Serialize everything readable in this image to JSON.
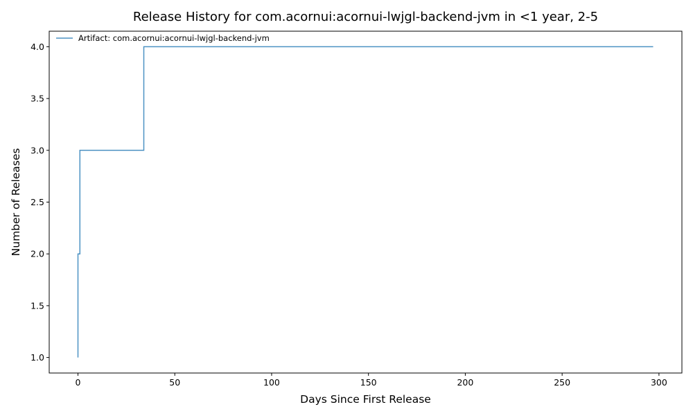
{
  "chart_data": {
    "type": "line",
    "drawstyle": "steps-post",
    "title": "Release History for com.acornui:acornui-lwjgl-backend-jvm in <1 year, 2-5",
    "xlabel": "Days Since First Release",
    "ylabel": "Number of Releases",
    "xlim": [
      -14.85,
      311.85
    ],
    "ylim": [
      0.85,
      4.15
    ],
    "xticks": [
      0,
      50,
      100,
      150,
      200,
      250,
      300
    ],
    "yticks": [
      1.0,
      1.5,
      2.0,
      2.5,
      3.0,
      3.5,
      4.0
    ],
    "xtick_labels": [
      "0",
      "50",
      "100",
      "150",
      "200",
      "250",
      "300"
    ],
    "ytick_labels": [
      "1.0",
      "1.5",
      "2.0",
      "2.5",
      "3.0",
      "3.5",
      "4.0"
    ],
    "grid": false,
    "legend": "top-left",
    "series": [
      {
        "name": "Artifact: com.acornui:acornui-lwjgl-backend-jvm",
        "color": "#1f77b4",
        "x": [
          0,
          0,
          1,
          34,
          297
        ],
        "y": [
          1,
          2,
          3,
          4,
          4
        ]
      }
    ]
  }
}
